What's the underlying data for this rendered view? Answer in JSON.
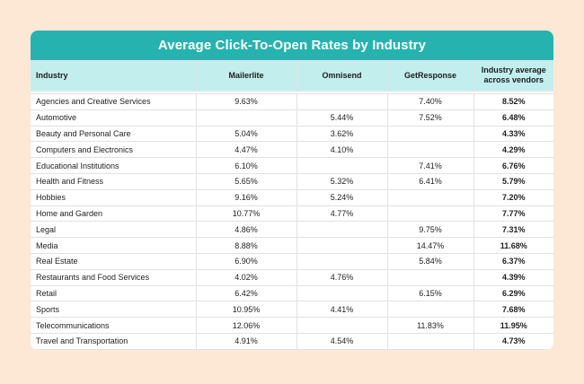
{
  "chart_data": {
    "type": "table",
    "title": "Average Click-To-Open Rates by Industry",
    "columns": [
      "Industry",
      "Mailerlite",
      "Omnisend",
      "GetResponse",
      "Industry average across vendors"
    ],
    "rows": [
      [
        "Agencies and Creative Services",
        "9.63%",
        "",
        "7.40%",
        "8.52%"
      ],
      [
        "Automotive",
        "",
        "5.44%",
        "7.52%",
        "6.48%"
      ],
      [
        "Beauty and Personal Care",
        "5.04%",
        "3.62%",
        "",
        "4.33%"
      ],
      [
        "Computers and Electronics",
        "4.47%",
        "4.10%",
        "",
        "4.29%"
      ],
      [
        "Educational Institutions",
        "6.10%",
        "",
        "7.41%",
        "6.76%"
      ],
      [
        "Health and Fitness",
        "5.65%",
        "5.32%",
        "6.41%",
        "5.79%"
      ],
      [
        "Hobbies",
        "9.16%",
        "5.24%",
        "",
        "7.20%"
      ],
      [
        "Home and Garden",
        "10.77%",
        "4.77%",
        "",
        "7.77%"
      ],
      [
        "Legal",
        "4.86%",
        "",
        "9.75%",
        "7.31%"
      ],
      [
        "Media",
        "8.88%",
        "",
        "14.47%",
        "11.68%"
      ],
      [
        "Real Estate",
        "6.90%",
        "",
        "5.84%",
        "6.37%"
      ],
      [
        "Restaurants and Food Services",
        "4.02%",
        "4.76%",
        "",
        "4.39%"
      ],
      [
        "Retail",
        "6.42%",
        "",
        "6.15%",
        "6.29%"
      ],
      [
        "Sports",
        "10.95%",
        "4.41%",
        "",
        "7.68%"
      ],
      [
        "Telecommunications",
        "12.06%",
        "",
        "11.83%",
        "11.95%"
      ],
      [
        "Travel and Transportation",
        "4.91%",
        "4.54%",
        "",
        "4.73%"
      ]
    ]
  },
  "colors": {
    "background": "#fde8d6",
    "title_bar": "#26b3b0",
    "header_row": "#c3eeee"
  }
}
